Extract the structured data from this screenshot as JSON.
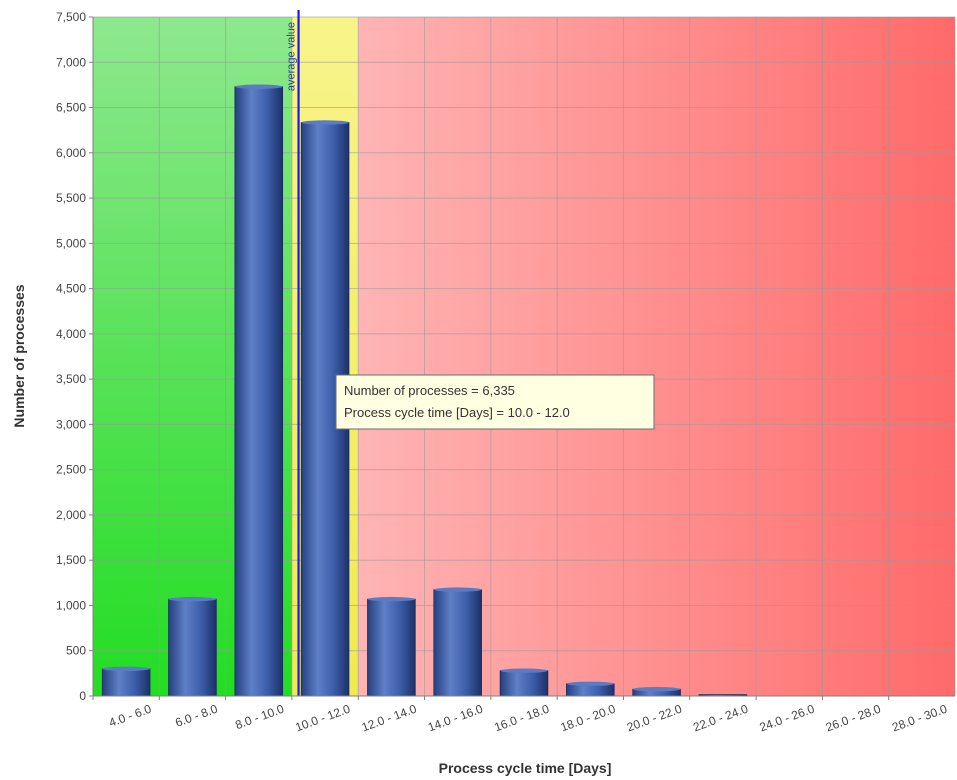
{
  "chart_data": {
    "type": "bar",
    "title": "",
    "xlabel": "Process cycle time [Days]",
    "ylabel": "Number of processes",
    "ylim": [
      0,
      7500
    ],
    "yticks": [
      0,
      500,
      1000,
      1500,
      2000,
      2500,
      3000,
      3500,
      4000,
      4500,
      5000,
      5500,
      6000,
      6500,
      7000,
      7500
    ],
    "ytick_labels": [
      "0",
      "500",
      "1,000",
      "1,500",
      "2,000",
      "2,500",
      "3,000",
      "3,500",
      "4,000",
      "4,500",
      "5,000",
      "5,500",
      "6,000",
      "6,500",
      "7,000",
      "7,500"
    ],
    "categories": [
      "4.0 - 6.0",
      "6.0 - 8.0",
      "8.0 - 10.0",
      "10.0 - 12.0",
      "12.0 - 14.0",
      "14.0 - 16.0",
      "16.0 - 18.0",
      "18.0 - 20.0",
      "20.0 - 22.0",
      "22.0 - 24.0",
      "24.0 - 26.0",
      "26.0 - 28.0",
      "28.0 - 30.0"
    ],
    "values": [
      300,
      1070,
      6730,
      6335,
      1070,
      1175,
      280,
      135,
      75,
      15,
      0,
      0,
      0
    ],
    "grid": true,
    "zones": [
      {
        "name": "green",
        "from_category": 0,
        "to_category": 2,
        "color": "#33dd33"
      },
      {
        "name": "yellow",
        "from_category": 3,
        "to_category": 3,
        "color": "#f5f070"
      },
      {
        "name": "red",
        "from_category": 4,
        "to_category": 12,
        "color": "#ff7777"
      }
    ],
    "average_line": {
      "label": "average value",
      "category_index": 3,
      "offset_in_category": 0.1,
      "color": "#1a1aee"
    },
    "tooltip": {
      "lines": [
        "Number of processes = 6,335",
        "Process cycle time [Days] = 10.0 - 12.0"
      ],
      "category_index": 3
    },
    "colors": {
      "bar": "#2e4f96",
      "bar_light": "#6f8fd4",
      "bar_dark": "#1e3470"
    }
  }
}
